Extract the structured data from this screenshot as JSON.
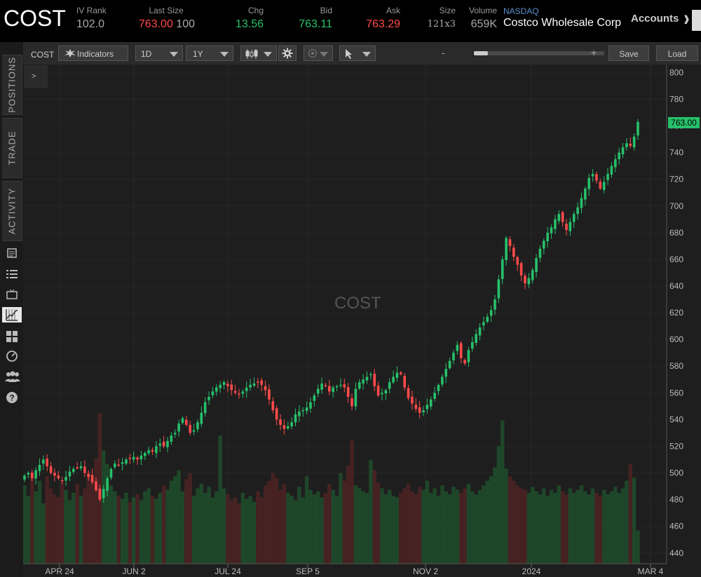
{
  "header": {
    "symbol": "COST",
    "fields": [
      {
        "label": "IV Rank",
        "value": "102.0"
      },
      {
        "label": "Last Size",
        "value": "763.00",
        "extra": "100"
      },
      {
        "label": "Chg",
        "value": "13.56"
      },
      {
        "label": "Bid",
        "value": "763.11"
      },
      {
        "label": "Ask",
        "value": "763.29"
      },
      {
        "label": "Size",
        "value": "121x3"
      },
      {
        "label": "Volume",
        "value": "659K"
      }
    ],
    "exchange": "NASDAQ",
    "company": "Costco Wholesale Corp",
    "accounts_label": "Accounts",
    "colors": {
      "up": "#27c06a",
      "down": "#ff4a4a"
    }
  },
  "left_rail": {
    "tabs": [
      "POSITIONS",
      "TRADE",
      "ACTIVITY"
    ],
    "icons": [
      "news-icon",
      "watchlist-icon",
      "tv-icon",
      "chart-icon",
      "grid-icon",
      "dashboard-icon",
      "community-icon",
      "help-icon"
    ]
  },
  "toolbar": {
    "symbol": "COST",
    "indicators_label": "Indicators",
    "interval": "1D",
    "range": "1Y",
    "zoom_plus": "+",
    "zoom_minus": "-",
    "save_label": "Save",
    "load_label": "Load"
  },
  "chart": {
    "collapse_label": ">",
    "watermark": "COST",
    "current_price_label": "763.00",
    "current_price_color": "#27c06a"
  },
  "chart_data": {
    "type": "candlestick",
    "y_ticks": [
      440,
      460,
      480,
      500,
      520,
      540,
      560,
      580,
      600,
      620,
      640,
      660,
      680,
      700,
      720,
      740,
      760,
      780,
      800
    ],
    "ylim": [
      432,
      806
    ],
    "x_tick_labels": [
      "APR 24",
      "JUN 2",
      "JUL 24",
      "SEP 5",
      "NOV 2",
      "2024",
      "MAR 4"
    ],
    "closes": [
      498,
      500,
      496,
      502,
      506,
      510,
      505,
      500,
      498,
      496,
      494,
      497,
      501,
      503,
      504,
      505,
      500,
      497,
      493,
      487,
      480,
      488,
      496,
      503,
      507,
      506,
      508,
      510,
      511,
      512,
      510,
      513,
      515,
      517,
      516,
      520,
      522,
      520,
      524,
      528,
      530,
      537,
      541,
      536,
      530,
      532,
      538,
      545,
      553,
      557,
      561,
      564,
      566,
      568,
      565,
      562,
      560,
      559,
      561,
      564,
      566,
      567,
      568,
      566,
      562,
      555,
      547,
      540,
      536,
      533,
      535,
      538,
      544,
      546,
      547,
      549,
      553,
      558,
      563,
      567,
      565,
      561,
      564,
      565,
      566,
      564,
      557,
      550,
      563,
      568,
      570,
      572,
      574,
      565,
      558,
      560,
      562,
      568,
      572,
      575,
      574,
      564,
      556,
      552,
      548,
      545,
      547,
      551,
      555,
      560,
      566,
      572,
      578,
      584,
      590,
      596,
      586,
      582,
      592,
      598,
      604,
      609,
      613,
      617,
      622,
      630,
      645,
      660,
      676,
      670,
      662,
      656,
      648,
      642,
      646,
      652,
      661,
      668,
      674,
      680,
      684,
      690,
      694,
      688,
      682,
      688,
      694,
      699,
      706,
      713,
      721,
      724,
      719,
      713,
      718,
      724,
      730,
      735,
      740,
      744,
      747,
      745,
      752,
      763
    ],
    "volume_scale": "relative",
    "volume_relative": [
      52,
      45,
      60,
      48,
      55,
      40,
      58,
      50,
      46,
      44,
      54,
      49,
      42,
      47,
      53,
      45,
      50,
      61,
      56,
      70,
      100,
      75,
      66,
      52,
      48,
      45,
      43,
      47,
      41,
      44,
      46,
      42,
      48,
      50,
      45,
      43,
      47,
      52,
      49,
      55,
      58,
      62,
      48,
      56,
      60,
      45,
      50,
      53,
      47,
      51,
      44,
      48,
      85,
      50,
      46,
      42,
      44,
      40,
      47,
      43,
      45,
      41,
      48,
      44,
      52,
      55,
      60,
      57,
      49,
      53,
      47,
      45,
      42,
      51,
      44,
      58,
      49,
      46,
      48,
      44,
      47,
      53,
      49,
      45,
      60,
      55,
      65,
      82,
      52,
      50,
      48,
      47,
      69,
      62,
      54,
      50,
      46,
      49,
      45,
      44,
      47,
      50,
      53,
      48,
      46,
      51,
      49,
      55,
      47,
      50,
      45,
      52,
      48,
      46,
      51,
      49,
      47,
      50,
      53,
      48,
      46,
      49,
      52,
      55,
      58,
      64,
      78,
      95,
      63,
      58,
      55,
      52,
      50,
      49,
      47,
      51,
      48,
      46,
      50,
      45,
      49,
      47,
      52,
      48,
      46,
      50,
      47,
      49,
      52,
      48,
      46,
      50,
      47,
      45,
      49,
      46,
      48,
      51,
      47,
      50,
      55,
      66,
      57,
      22
    ]
  }
}
